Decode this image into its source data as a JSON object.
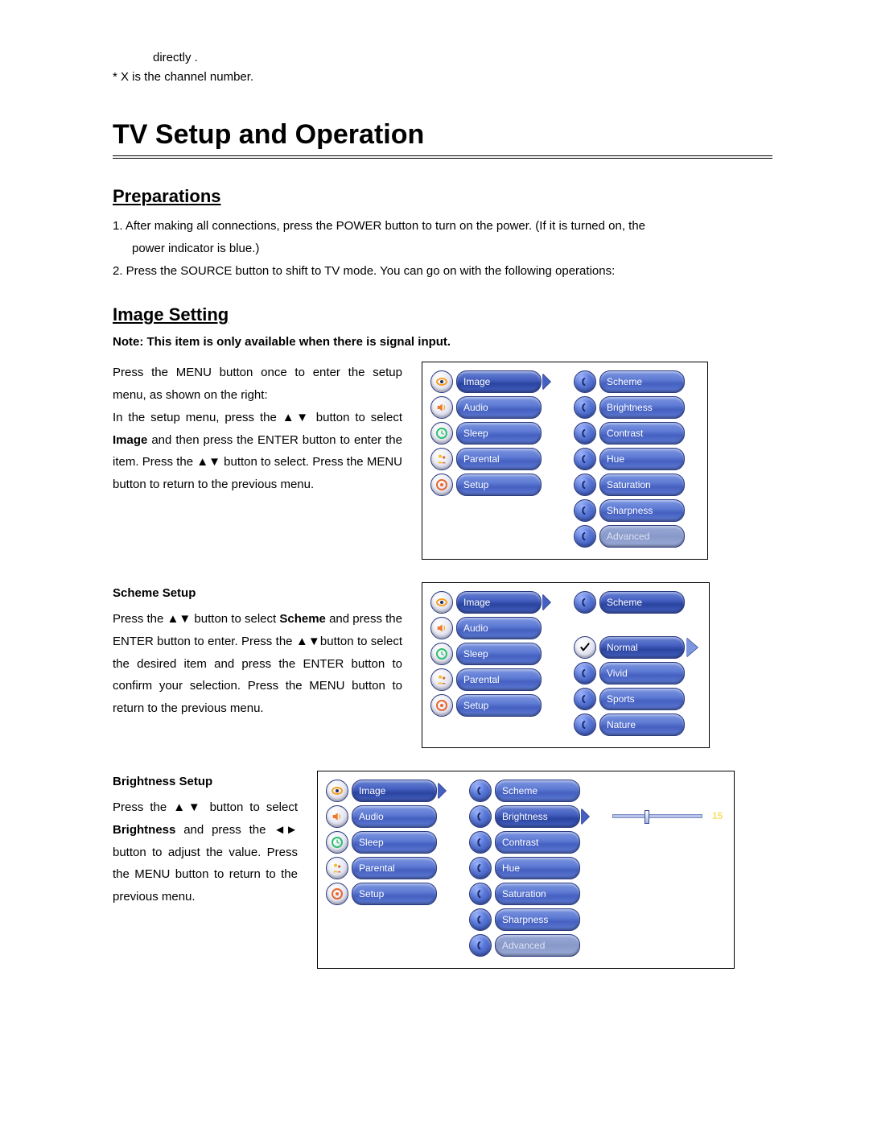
{
  "topText": {
    "line1": "directly .",
    "line2": "* X is the channel number."
  },
  "mainTitle": "TV Setup and Operation",
  "preparations": {
    "heading": "Preparations",
    "item1": "1. After making all connections, press the POWER button to turn on the power. (If it is turned on, the",
    "item1b": "power indicator is blue.)",
    "item2": "2. Press the SOURCE button to shift to TV mode. You can go on with the following operations:"
  },
  "imageSetting": {
    "heading": "Image Setting",
    "note": "Note: This item is only available when there is signal input.",
    "para1a": "Press the MENU button once to enter the setup menu, as shown on the right:",
    "para1b": "In the setup menu, press the ▲▼ button to select ",
    "para1b_bold": "Image",
    "para1c": " and then press the ENTER button to enter the item. Press the ▲▼ button to select. Press the MENU button to return to the previous menu."
  },
  "schemeSetup": {
    "title": "Scheme Setup",
    "textA": "Press the ▲▼ button to select ",
    "textA_bold": "Scheme",
    "textB": " and press the ENTER button to enter. Press the ▲▼button to select the desired item and press the ENTER button to confirm your selection. Press the MENU button to return to the previous menu."
  },
  "brightnessSetup": {
    "title": "Brightness Setup",
    "textA": "Press the ▲▼ button to select ",
    "textA_bold": "Brightness",
    "textB": " and press the ◄► button to adjust the value. Press the MENU button to return to the previous menu."
  },
  "menus": {
    "main": [
      "Image",
      "Audio",
      "Sleep",
      "Parental",
      "Setup"
    ],
    "imageSub": [
      "Scheme",
      "Brightness",
      "Contrast",
      "Hue",
      "Saturation",
      "Sharpness",
      "Advanced"
    ],
    "schemeOptions": [
      "Scheme",
      "Normal",
      "Vivid",
      "Sports",
      "Nature"
    ],
    "brightnessValue": "15",
    "sliderPercent": 35
  },
  "iconColors": {
    "image": "#f5a020",
    "audio": "#f07828",
    "sleep": "#30c070",
    "parental": "#f0c030",
    "setup": "#e86830"
  }
}
